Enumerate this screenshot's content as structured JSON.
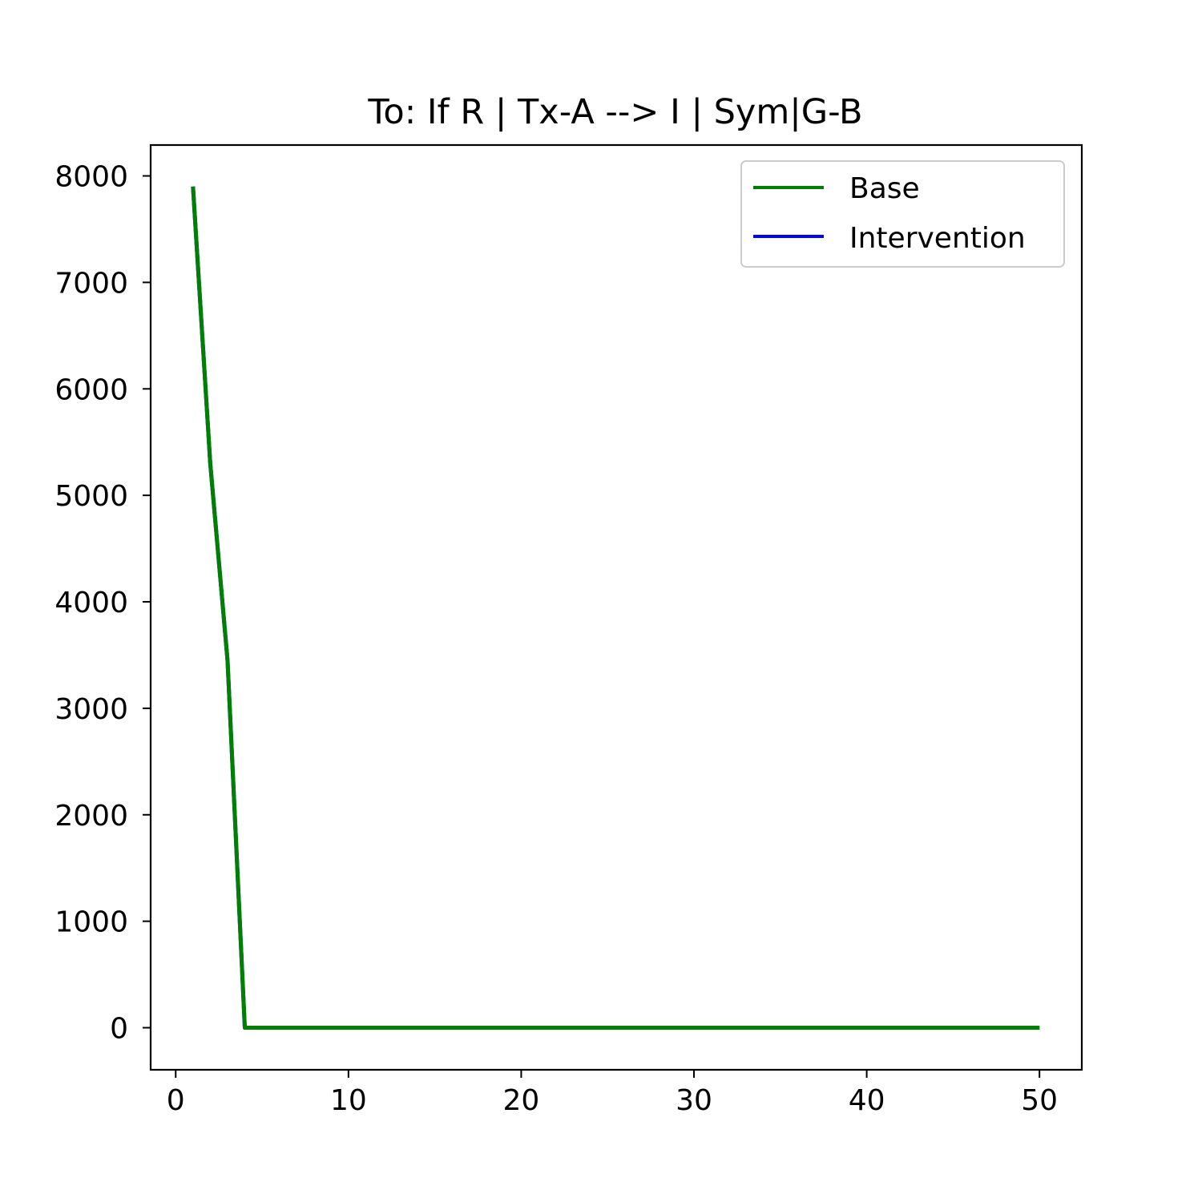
{
  "chart_data": {
    "type": "line",
    "title": "To: If R | Tx-A --> I | Sym|G-B",
    "xlabel": "",
    "ylabel": "",
    "xlim": [
      -1.45,
      52.45
    ],
    "ylim": [
      -395,
      8290
    ],
    "x_ticks": [
      0,
      10,
      20,
      30,
      40,
      50
    ],
    "y_ticks": [
      0,
      1000,
      2000,
      3000,
      4000,
      5000,
      6000,
      7000,
      8000
    ],
    "legend_position": "top-right",
    "x": [
      1,
      2,
      3,
      4,
      5,
      6,
      7,
      8,
      9,
      10,
      11,
      12,
      13,
      14,
      15,
      16,
      17,
      18,
      19,
      20,
      21,
      22,
      23,
      24,
      25,
      26,
      27,
      28,
      29,
      30,
      31,
      32,
      33,
      34,
      35,
      36,
      37,
      38,
      39,
      40,
      41,
      42,
      43,
      44,
      45,
      46,
      47,
      48,
      49,
      50
    ],
    "series": [
      {
        "name": "Intervention",
        "color": "#0000ff",
        "values": [
          7900,
          5300,
          3450,
          0,
          0,
          0,
          0,
          0,
          0,
          0,
          0,
          0,
          0,
          0,
          0,
          0,
          0,
          0,
          0,
          0,
          0,
          0,
          0,
          0,
          0,
          0,
          0,
          0,
          0,
          0,
          0,
          0,
          0,
          0,
          0,
          0,
          0,
          0,
          0,
          0,
          0,
          0,
          0,
          0,
          0,
          0,
          0,
          0,
          0,
          0
        ]
      },
      {
        "name": "Base",
        "color": "#008000",
        "values": [
          7900,
          5300,
          3450,
          0,
          0,
          0,
          0,
          0,
          0,
          0,
          0,
          0,
          0,
          0,
          0,
          0,
          0,
          0,
          0,
          0,
          0,
          0,
          0,
          0,
          0,
          0,
          0,
          0,
          0,
          0,
          0,
          0,
          0,
          0,
          0,
          0,
          0,
          0,
          0,
          0,
          0,
          0,
          0,
          0,
          0,
          0,
          0,
          0,
          0,
          0
        ]
      }
    ],
    "legend": [
      "Base",
      "Intervention"
    ]
  }
}
